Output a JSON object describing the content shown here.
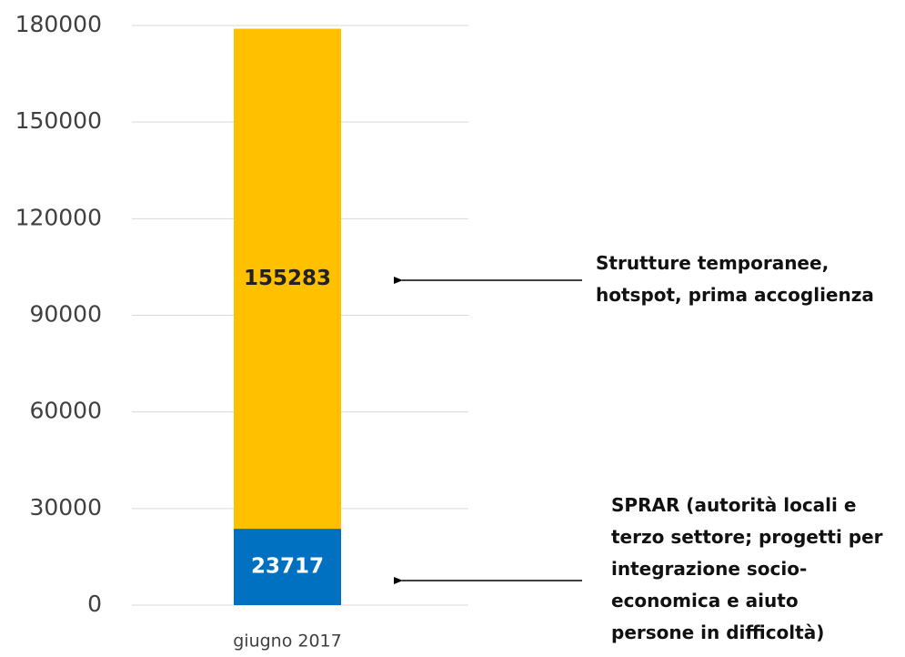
{
  "chart_data": {
    "type": "stacked_bar",
    "categories": [
      "giugno 2017"
    ],
    "series": [
      {
        "name": "SPRAR (autorità locali e terzo settore; progetti per integrazione socio-economica e aiuto persone in difficoltà)",
        "color": "#0070c0",
        "values": [
          23717
        ]
      },
      {
        "name": "Strutture temporanee, hotspot, prima accoglienza",
        "color": "#ffc000",
        "values": [
          155283
        ]
      }
    ],
    "ylim": [
      0,
      180000
    ],
    "yticks": [
      0,
      30000,
      60000,
      90000,
      120000,
      150000,
      180000
    ],
    "grid": true
  }
}
